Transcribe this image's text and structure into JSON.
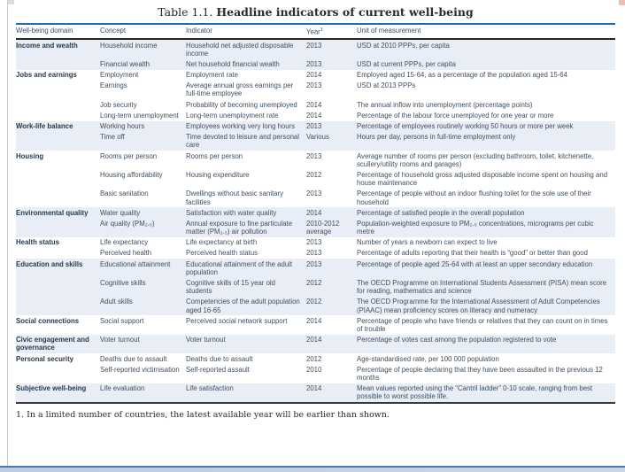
{
  "page": {
    "title": {
      "prefix": "Table 1.1.",
      "main": "Headline indicators of current well-being"
    },
    "footnote": "1. In a limited number of countries, the latest available year will be earlier than shown."
  },
  "table": {
    "columns": [
      "Well-being domain",
      "Concept",
      "Indicator",
      "Year",
      "Unit of measurement"
    ],
    "year_note_superscript": "1",
    "groups": [
      {
        "domain": "Income and wealth",
        "shaded": true,
        "rows": [
          {
            "concept": "Household income",
            "indicator": "Household net adjusted disposable income",
            "year": "2013",
            "unit": "USD at 2010 PPPs, per capita"
          },
          {
            "concept": "Financial wealth",
            "indicator": "Net household financial wealth",
            "year": "2013",
            "unit": "USD at current PPPs, per capita"
          }
        ]
      },
      {
        "domain": "Jobs and earnings",
        "shaded": false,
        "rows": [
          {
            "concept": "Employment",
            "indicator": "Employment rate",
            "year": "2014",
            "unit": "Employed aged 15-64, as a percentage of the population aged 15-64"
          },
          {
            "concept": "Earnings",
            "indicator": "Average annual gross earnings per full-time employee",
            "year": "2013",
            "unit": "USD at 2013 PPPs"
          },
          {
            "concept": "Job security",
            "indicator": "Probability of becoming unemployed",
            "year": "2014",
            "unit": "The annual inflow into unemployment (percentage points)"
          },
          {
            "concept": "Long-term unemployment",
            "indicator": "Long-term unemployment rate",
            "year": "2014",
            "unit": "Percentage of the labour force unemployed for one year or more"
          }
        ]
      },
      {
        "domain": "Work-life balance",
        "shaded": true,
        "rows": [
          {
            "concept": "Working hours",
            "indicator": "Employees working very long hours",
            "year": "2013",
            "unit": "Percentage of employees routinely working 50 hours or more per week"
          },
          {
            "concept": "Time off",
            "indicator": "Time devoted to leisure and personal care",
            "year": "Various",
            "unit": "Hours per day, persons in full-time employment only"
          }
        ]
      },
      {
        "domain": "Housing",
        "shaded": false,
        "rows": [
          {
            "concept": "Rooms per person",
            "indicator": "Rooms per person",
            "year": "2013",
            "unit": "Average number of rooms per person (excluding bathroom, toilet, kitchenette, scullery/utility rooms and garages)"
          },
          {
            "concept": "Housing affordability",
            "indicator": "Housing expenditure",
            "year": "2012",
            "unit": "Percentage of household gross adjusted disposable income spent on housing and house maintenance"
          },
          {
            "concept": "Basic sanitation",
            "indicator": "Dwellings without basic sanitary facilities",
            "year": "2013",
            "unit": "Percentage of people without an indoor flushing toilet for the sole use of their household"
          }
        ]
      },
      {
        "domain": "Environmental quality",
        "shaded": true,
        "rows": [
          {
            "concept": "Water quality",
            "indicator": "Satisfaction with water quality",
            "year": "2014",
            "unit": "Percentage of satisfied people in the overall population"
          },
          {
            "concept": "Air quality (PM₂.₅)",
            "indicator": "Annual exposure to fine particulate matter (PM₂.₅) air pollution",
            "year": "2010-2012 average",
            "unit": "Population-weighted exposure to PM₂.₅ concentrations, micrograms per cubic metre"
          }
        ]
      },
      {
        "domain": "Health status",
        "shaded": false,
        "rows": [
          {
            "concept": "Life expectancy",
            "indicator": "Life expectancy at birth",
            "year": "2013",
            "unit": "Number of years a newborn can expect to live"
          },
          {
            "concept": "Perceived health",
            "indicator": "Perceived health status",
            "year": "2013",
            "unit": "Percentage of adults reporting that their health is “good” or better than good"
          }
        ]
      },
      {
        "domain": "Education and skills",
        "shaded": true,
        "rows": [
          {
            "concept": "Educational attainment",
            "indicator": "Educational attainment of the adult population",
            "year": "2013",
            "unit": "Percentage of people aged 25-64 with at least an upper secondary education"
          },
          {
            "concept": "Cognitive skills",
            "indicator": "Cognitive skills of 15 year old students",
            "year": "2012",
            "unit": "The OECD Programme on International Students Assessment (PISA) mean score for reading, mathematics and science"
          },
          {
            "concept": "Adult skills",
            "indicator": "Competencies of the adult population aged 16-65",
            "year": "2012",
            "unit": "The OECD Programme for the International Assessment of Adult Competencies (PIAAC) mean proficiency scores on literacy and numeracy"
          }
        ]
      },
      {
        "domain": "Social connections",
        "shaded": false,
        "rows": [
          {
            "concept": "Social support",
            "indicator": "Perceived social network support",
            "year": "2014",
            "unit": "Percentage of people who have friends or relatives that they can count on in times of trouble"
          }
        ]
      },
      {
        "domain": "Civic engagement and governance",
        "shaded": true,
        "rows": [
          {
            "concept": "Voter turnout",
            "indicator": "Voter turnout",
            "year": "2014",
            "unit": "Percentage of votes cast among the population registered to vote"
          }
        ]
      },
      {
        "domain": "Personal security",
        "shaded": false,
        "rows": [
          {
            "concept": "Deaths due to assault",
            "indicator": "Deaths due to assault",
            "year": "2012",
            "unit": "Age-standardised rate, per 100 000 population"
          },
          {
            "concept": "Self-reported victimisation",
            "indicator": "Self-reported assault",
            "year": "2010",
            "unit": "Percentage of people declaring that they have been assaulted in the previous 12 months"
          }
        ]
      },
      {
        "domain": "Subjective well-being",
        "shaded": true,
        "rows": [
          {
            "concept": "Life evaluation",
            "indicator": "Life satisfaction",
            "year": "2014",
            "unit": "Mean values reported using the “Cantril ladder” 0-10 scale, ranging from best possible to worst possible life."
          }
        ]
      }
    ]
  },
  "colors": {
    "table_top_border": "#1c6fad",
    "header_underline": "#262626",
    "row_shade": "#e9eef6",
    "body_text": "#3f4e60",
    "domain_text": "#26394e",
    "serif_text": "#2b2a26",
    "bottom_bar_line": "#4a7ab2",
    "bottom_bar_fill": "#ccd6e3"
  }
}
